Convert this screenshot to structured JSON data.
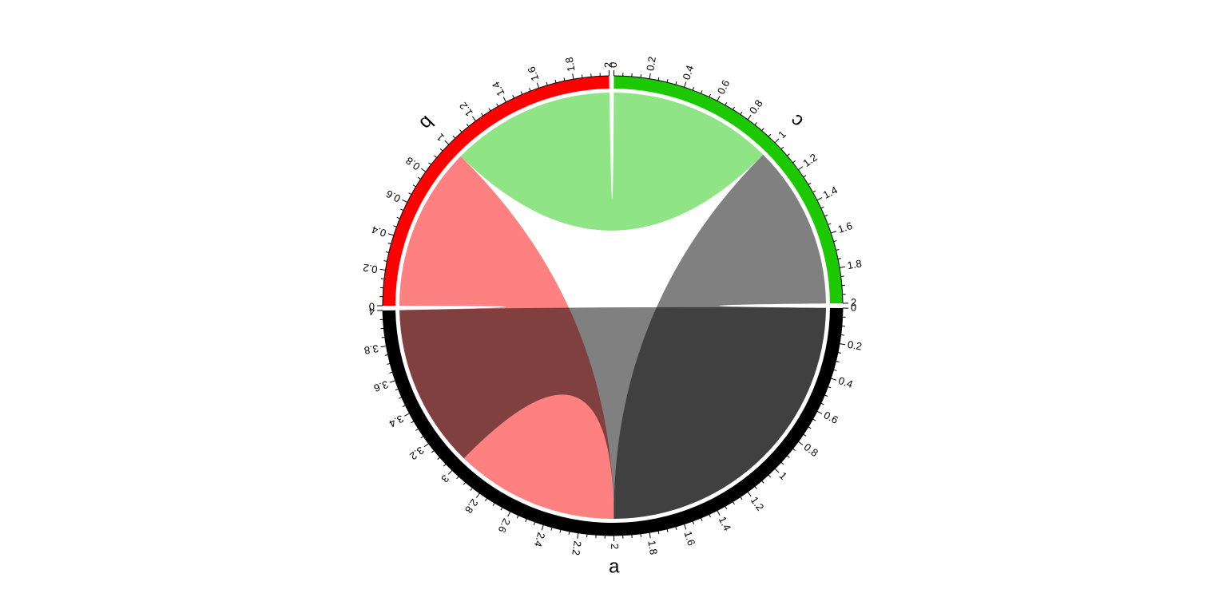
{
  "chart_data": {
    "type": "chord",
    "title": "",
    "sectors": [
      {
        "name": "a",
        "length": 4,
        "color": "#000000"
      },
      {
        "name": "b",
        "length": 2,
        "color": "#FF0000"
      },
      {
        "name": "c",
        "length": 2,
        "color": "#1CC800"
      }
    ],
    "links": [
      {
        "from": "a",
        "from_range": [
          2,
          4
        ],
        "to": "b",
        "to_range": [
          0,
          1
        ],
        "color": "#FF8080"
      },
      {
        "from": "a",
        "from_range": [
          0,
          2
        ],
        "to": "c",
        "to_range": [
          1,
          2
        ],
        "color": "#808080"
      },
      {
        "from": "a",
        "from_range": [
          3,
          4
        ],
        "to": "a",
        "to_range": [
          0,
          2
        ],
        "color": "#808080"
      },
      {
        "from": "b",
        "from_range": [
          1,
          2
        ],
        "to": "c",
        "to_range": [
          0,
          1
        ],
        "color": "#8FE485"
      }
    ],
    "tick_labels": {
      "a": [
        "0",
        "0.2",
        "0.4",
        "0.6",
        "0.8",
        "1",
        "1.2",
        "1.4",
        "1.6",
        "1.8",
        "2",
        "2.2",
        "2.4",
        "2.6",
        "2.8",
        "3",
        "3.2",
        "3.4",
        "3.6",
        "3.8",
        "4"
      ],
      "b": [
        "0",
        "0.2",
        "0.4",
        "0.6",
        "0.8",
        "1",
        "1.2",
        "1.4",
        "1.6",
        "1.8",
        "2"
      ],
      "c": [
        "0",
        "0.2",
        "0.4",
        "0.6",
        "0.8",
        "1",
        "1.2",
        "1.4",
        "1.6",
        "1.8",
        "2"
      ]
    },
    "major_tick_step": 0.2,
    "minor_tick_step": 0.05,
    "sector_order": "clockwise from 3 o'clock: a, b, c"
  }
}
